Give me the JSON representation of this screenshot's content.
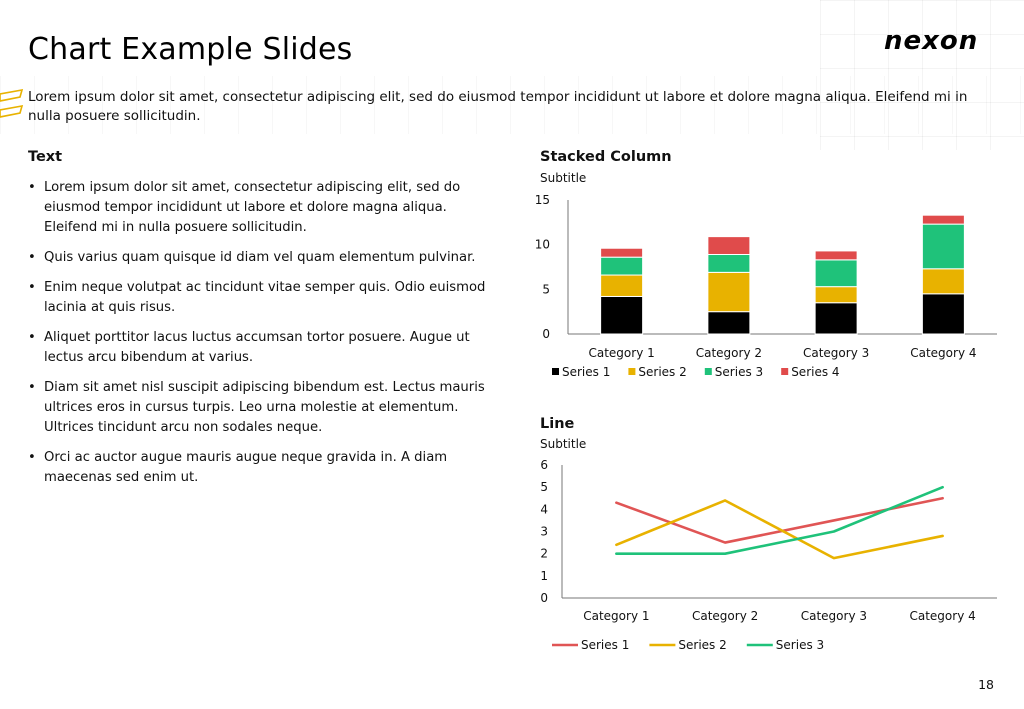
{
  "slide": {
    "title": "Chart Example Slides",
    "logo": "nexon",
    "intro": "Lorem ipsum dolor sit amet, consectetur adipiscing elit, sed do eiusmod tempor incididunt ut labore et dolore magna aliqua. Eleifend mi in nulla posuere sollicitudin.",
    "page_number": "18"
  },
  "text_section": {
    "heading": "Text",
    "bullets": [
      "Lorem ipsum dolor sit amet, consectetur adipiscing elit, sed do eiusmod tempor incididunt ut labore et dolore magna aliqua. Eleifend mi in nulla posuere sollicitudin.",
      "Quis varius quam quisque id diam vel quam elementum pulvinar.",
      "Enim neque volutpat ac tincidunt vitae semper quis. Odio euismod lacinia at quis risus.",
      "Aliquet porttitor lacus luctus accumsan tortor posuere. Augue ut lectus arcu bibendum at varius.",
      "Diam sit amet nisl suscipit adipiscing bibendum est. Lectus mauris ultrices eros in cursus turpis. Leo urna molestie at elementum. Ultrices tincidunt arcu non sodales neque.",
      "Orci ac auctor augue mauris augue neque gravida in. A diam maecenas sed enim ut."
    ]
  },
  "colors": {
    "series1_stacked": "#000000",
    "series2": "#e8b200",
    "series3": "#1fc27a",
    "series4": "#e04b4b",
    "line_series1": "#e05555",
    "accent_deco": "#e8b200"
  },
  "chart_data": [
    {
      "type": "bar",
      "stacked": true,
      "title": "Stacked Column",
      "subtitle": "Subtitle",
      "categories": [
        "Category 1",
        "Category 2",
        "Category 3",
        "Category 4"
      ],
      "ylim": [
        0,
        15
      ],
      "yticks": [
        0,
        5,
        10,
        15
      ],
      "grid": false,
      "legend_position": "bottom",
      "series": [
        {
          "name": "Series 1",
          "values": [
            4.2,
            2.5,
            3.5,
            4.5
          ]
        },
        {
          "name": "Series 2",
          "values": [
            2.4,
            4.4,
            1.8,
            2.8
          ]
        },
        {
          "name": "Series 3",
          "values": [
            2.0,
            2.0,
            3.0,
            5.0
          ]
        },
        {
          "name": "Series 4",
          "values": [
            1.0,
            2.0,
            1.0,
            1.0
          ]
        }
      ]
    },
    {
      "type": "line",
      "title": "Line",
      "subtitle": "Subtitle",
      "categories": [
        "Category 1",
        "Category 2",
        "Category 3",
        "Category 4"
      ],
      "ylim": [
        0,
        6
      ],
      "yticks": [
        0,
        1,
        2,
        3,
        4,
        5,
        6
      ],
      "grid": false,
      "legend_position": "bottom",
      "series": [
        {
          "name": "Series 1",
          "values": [
            4.3,
            2.5,
            3.5,
            4.5
          ]
        },
        {
          "name": "Series 2",
          "values": [
            2.4,
            4.4,
            1.8,
            2.8
          ]
        },
        {
          "name": "Series 3",
          "values": [
            2.0,
            2.0,
            3.0,
            5.0
          ]
        }
      ]
    }
  ]
}
